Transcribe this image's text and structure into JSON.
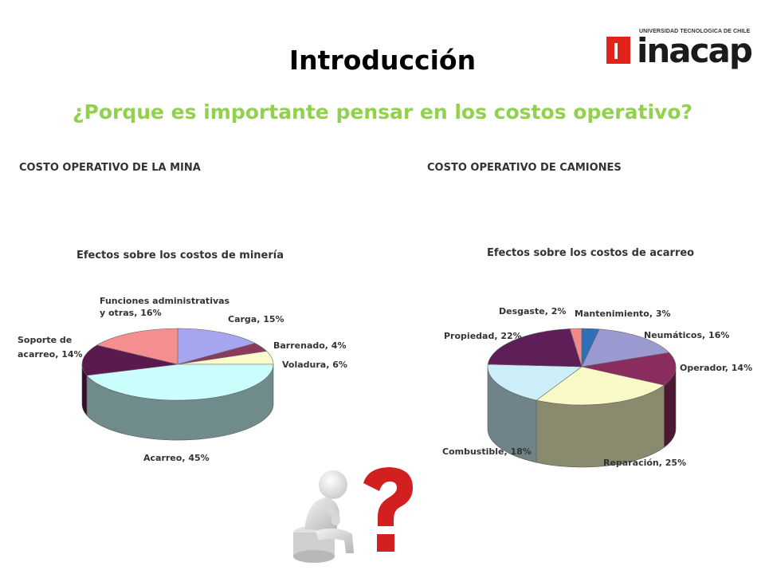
{
  "slide": {
    "title": "Introducción",
    "subtitle": "¿Porque es importante pensar en los costos operativo?"
  },
  "logo": {
    "university": "UNIVERSIDAD TECNOLOGICA DE CHILE",
    "wordmark": "inacap",
    "brand_color": "#e2231a"
  },
  "colors": {
    "subtitle": "#92d050",
    "question_mark": "#d21f1f"
  },
  "left_section": {
    "heading": "COSTO OPERATIVO DE LA MINA"
  },
  "right_section": {
    "heading": "COSTO OPERATIVO DE CAMIONES"
  },
  "chart_data": [
    {
      "type": "pie",
      "title": "Efectos sobre los costos de minería",
      "slices": [
        {
          "label": "Carga, 15%",
          "value": 15,
          "color": "#a6a6f0"
        },
        {
          "label": "Barrenado, 4%",
          "value": 4,
          "color": "#8b3a5c"
        },
        {
          "label": "Voladura, 6%",
          "value": 6,
          "color": "#fbfbcc"
        },
        {
          "label": "Acarreo, 45%",
          "value": 45,
          "color": "#ccfdfd"
        },
        {
          "label": "Soporte de acarreo, 14%",
          "value": 14,
          "color": "#5a1a4e"
        },
        {
          "label": "Funciones administrativas y otras, 16%",
          "value": 16,
          "color": "#f58e8e"
        }
      ]
    },
    {
      "type": "pie",
      "title": "Efectos sobre los costos de acarreo",
      "slices": [
        {
          "label": "Mantenimiento, 3%",
          "value": 3,
          "color": "#2e6fb7"
        },
        {
          "label": "Neumáticos, 16%",
          "value": 16,
          "color": "#9a9ad0"
        },
        {
          "label": "Operador, 14%",
          "value": 14,
          "color": "#8b2c5e"
        },
        {
          "label": "Reparación, 25%",
          "value": 25,
          "color": "#fafac9"
        },
        {
          "label": "Combustible, 18%",
          "value": 18,
          "color": "#cbeef8"
        },
        {
          "label": "Propiedad, 22%",
          "value": 22,
          "color": "#5e1e58"
        },
        {
          "label": "Desgaste, 2%",
          "value": 2,
          "color": "#ee8a8a"
        }
      ]
    }
  ]
}
